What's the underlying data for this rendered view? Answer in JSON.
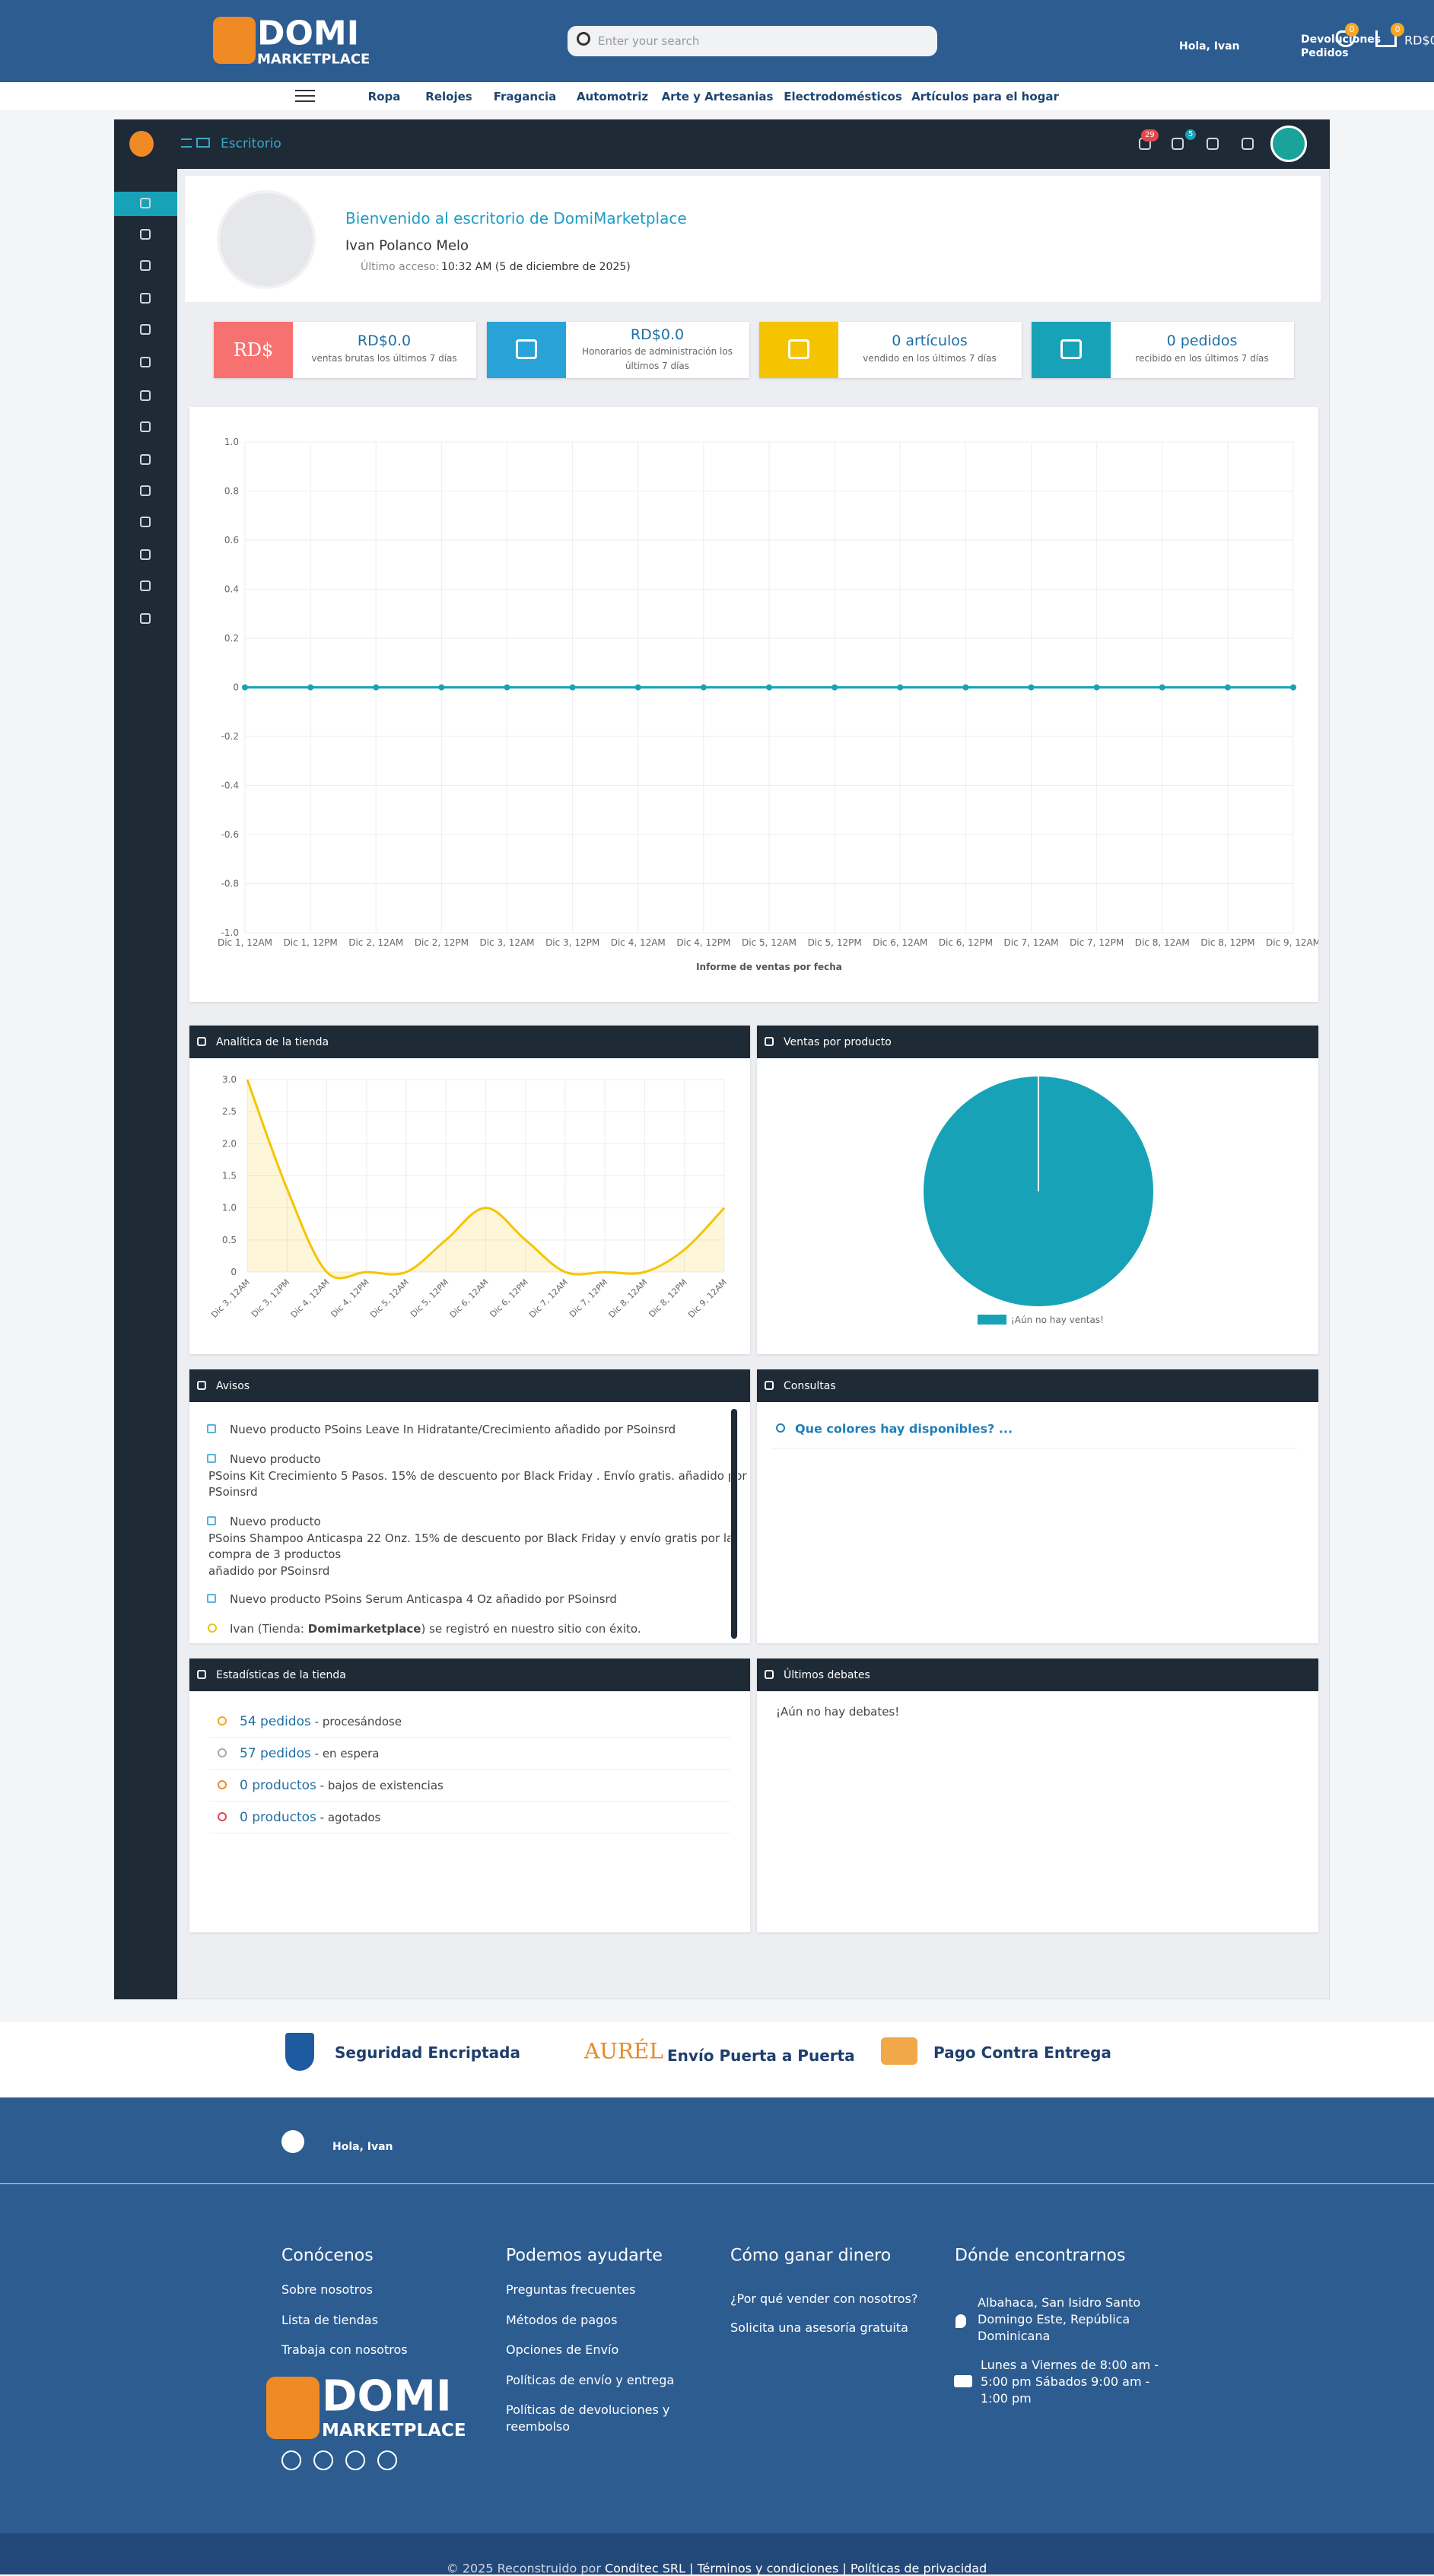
{
  "header": {
    "logo_top": "DOMI",
    "logo_bottom": "MARKETPLACE",
    "search_placeholder": "Enter your search",
    "greeting": "Hola, Ivan",
    "returns": "Devoluciones",
    "orders": "Pedidos",
    "wishlist_count": "0",
    "cart_count": "0",
    "cart_total": "RD$0"
  },
  "nav": [
    "Ropa",
    "Relojes",
    "Fragancia",
    "Automotriz",
    "Arte y Artesanias",
    "Electrodomésticos",
    "Artículos para el hogar"
  ],
  "dashboard": {
    "breadcrumb": "Escritorio",
    "notification_count": "29",
    "help_count": "5",
    "welcome": {
      "title": "Bienvenido al escritorio de DomiMarketplace",
      "name": "Ivan Polanco Melo",
      "last_access_label": "Último acceso:",
      "last_access": "10:32 AM (5 de diciembre de 2025)"
    },
    "stats": [
      {
        "icon_text": "RD$",
        "value": "RD$0.0",
        "label": "ventas brutas los últimos 7 días"
      },
      {
        "value": "RD$0.0",
        "label": "Honorarios de administración los",
        "label2": "últimos 7 días"
      },
      {
        "value": "0 artículos",
        "label": "vendido en los últimos 7 días"
      },
      {
        "value": "0 pedidos",
        "label": "recibido en los últimos 7 días"
      }
    ],
    "sales_chart": {
      "type": "line",
      "categories": [
        "Dic 1, 12AM",
        "Dic 1, 12PM",
        "Dic 2, 12AM",
        "Dic 2, 12PM",
        "Dic 3, 12AM",
        "Dic 3, 12PM",
        "Dic 4, 12AM",
        "Dic 4, 12PM",
        "Dic 5, 12AM",
        "Dic 5, 12PM",
        "Dic 6, 12AM",
        "Dic 6, 12PM",
        "Dic 7, 12AM",
        "Dic 7, 12PM",
        "Dic 8, 12AM",
        "Dic 8, 12PM",
        "Dic 9, 12AM"
      ],
      "series": [
        {
          "color": "#e8c21a",
          "values": [
            0,
            0,
            0,
            0,
            0,
            0,
            0,
            0,
            0,
            0,
            0,
            0,
            0,
            0,
            0,
            0,
            0
          ]
        },
        {
          "color": "#17a2b8",
          "values": [
            0,
            0,
            0,
            0,
            0,
            0,
            0,
            0,
            0,
            0,
            0,
            0,
            0,
            0,
            0,
            0,
            0
          ]
        }
      ],
      "ylim": [
        -1,
        1
      ],
      "yticks": [
        {
          "value": -1,
          "label": "-1.0"
        },
        {
          "value": -0.8,
          "label": "-0.8"
        },
        {
          "value": -0.6,
          "label": "-0.6"
        },
        {
          "value": -0.4,
          "label": "-0.4"
        },
        {
          "value": -0.2,
          "label": "-0.2"
        },
        0,
        0.2,
        0.4,
        0.6,
        0.8,
        {
          "value": 1,
          "label": "1.0"
        }
      ],
      "x_title": "Informe de ventas por fecha",
      "grid": true
    },
    "analytics": {
      "title": "Analítica de la tienda",
      "chart": {
        "type": "area",
        "categories": [
          "Dic 3, 12AM",
          "Dic 3, 12PM",
          "Dic 4, 12AM",
          "Dic 4, 12PM",
          "Dic 5, 12AM",
          "Dic 5, 12PM",
          "Dic 6, 12AM",
          "Dic 6, 12PM",
          "Dic 7, 12AM",
          "Dic 7, 12PM",
          "Dic 8, 12AM",
          "Dic 8, 12PM",
          "Dic 9, 12AM"
        ],
        "values": [
          3,
          1.3,
          0,
          0,
          0,
          0.5,
          1,
          0.5,
          0,
          0,
          0,
          0.35,
          1
        ],
        "color": "#f5c400",
        "ylim": [
          0,
          3
        ],
        "yticks": [
          0,
          0.5,
          {
            "value": 1,
            "label": "1.0"
          },
          1.5,
          {
            "value": 2,
            "label": "2.0"
          },
          2.5,
          {
            "value": 3,
            "label": "3.0"
          }
        ],
        "grid": true
      }
    },
    "product_sales": {
      "title": "Ventas por producto",
      "chart": {
        "type": "pie",
        "categories": [
          "¡Aún no hay ventas!"
        ],
        "values": [
          100
        ],
        "color": "#17a2b8"
      }
    },
    "notices": {
      "title": "Avisos",
      "items": [
        [
          "Nuevo producto PSoins Leave In Hidratante/Crecimiento añadido por PSoinsrd"
        ],
        [
          "Nuevo producto",
          "PSoins Kit Crecimiento 5 Pasos. 15% de descuento por Black Friday . Envío gratis. añadido por",
          "PSoinsrd"
        ],
        [
          "Nuevo producto",
          "PSoins Shampoo Anticaspa 22 Onz. 15% de descuento por Black Friday y envío gratis por la",
          "compra de 3 productos",
          "añadido por PSoinsrd"
        ],
        [
          "Nuevo producto PSoins Serum Anticaspa 4 Oz añadido por PSoinsrd"
        ]
      ],
      "registration": {
        "before": "Ivan (Tienda:",
        "store": "Domimarketplace",
        "after": ") se registró en nuestro sitio con éxito."
      }
    },
    "inquiries": {
      "title": "Consultas",
      "items": [
        "Que colores hay disponibles? ..."
      ]
    },
    "store_stats": {
      "title": "Estadísticas de la tienda",
      "items": [
        {
          "link": "54 pedidos",
          "text": "- procesándose"
        },
        {
          "link": "57 pedidos",
          "text": "- en espera"
        },
        {
          "link": "0 productos",
          "text": "- bajos de existencias"
        },
        {
          "link": "0 productos",
          "text": "- agotados"
        }
      ]
    },
    "debates": {
      "title": "Últimos debates",
      "empty": "¡Aún no hay debates!"
    }
  },
  "features": {
    "items": [
      "Seguridad Encriptada",
      "Envío Puerta a Puerta",
      "Pago Contra Entrega"
    ],
    "aurel_logo": "AURÉL"
  },
  "footer": {
    "greeting": "Hola, Ivan",
    "columns": [
      {
        "title": "Conócenos",
        "links": [
          "Sobre nosotros",
          "Lista de tiendas",
          "Trabaja con nosotros"
        ]
      },
      {
        "title": "Podemos ayudarte",
        "links": [
          "Preguntas frecuentes",
          "Métodos de pagos",
          "Opciones de Envío",
          "Políticas de envío y entrega",
          "Políticas de devoluciones y reembolso"
        ]
      },
      {
        "title": "Cómo ganar dinero",
        "links": [
          "¿Por qué vender con nosotros?",
          "Solicita una asesoría gratuita"
        ]
      },
      {
        "title": "Dónde encontrarnos",
        "address": "Albahaca, San Isidro Santo Domingo Este, República Dominicana",
        "hours": "Lunes a Viernes de 8:00 am - 5:00 pm Sábados 9:00 am - 1:00 pm"
      }
    ],
    "bottom": [
      "© 2025 Reconstruido por",
      "Conditec SRL",
      "|",
      "Términos y condiciones",
      "|",
      "Políticas de privacidad"
    ]
  }
}
